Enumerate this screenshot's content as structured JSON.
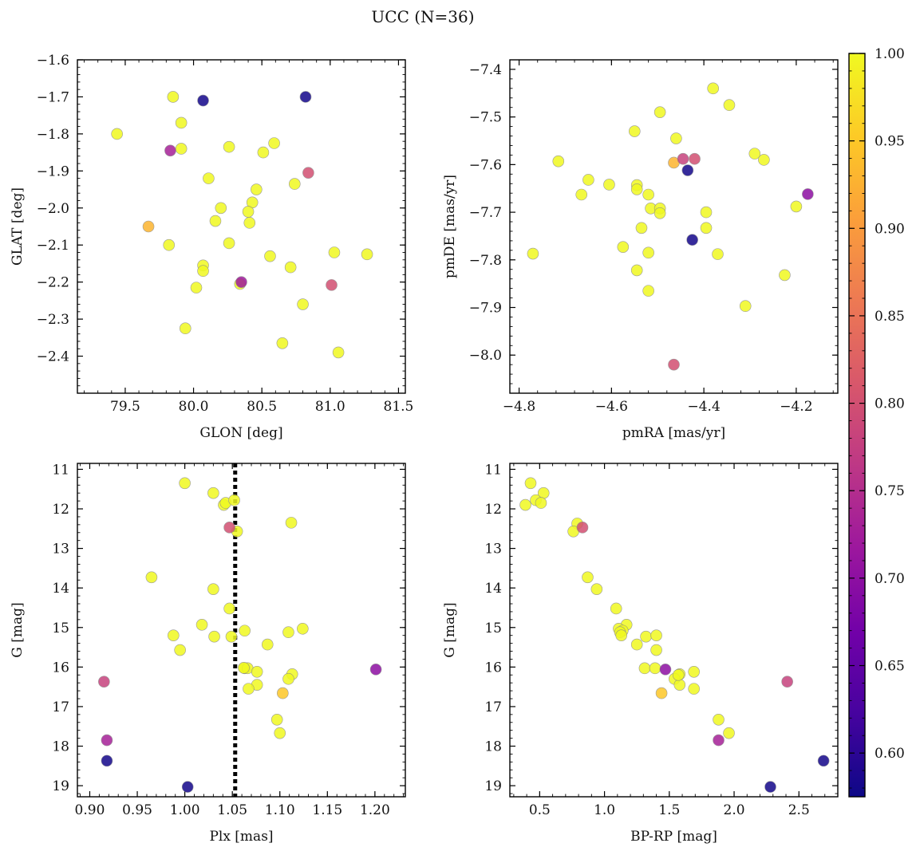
{
  "figure_title": "UCC (N=36)",
  "colorbar": {
    "min": 0.575,
    "max": 1.0,
    "ticks": [
      "0.60",
      "0.65",
      "0.70",
      "0.75",
      "0.80",
      "0.85",
      "0.90",
      "0.95",
      "1.00"
    ],
    "colormap": "plasma",
    "stops": [
      "#0d0887",
      "#46039f",
      "#7201a8",
      "#9c179e",
      "#bd3786",
      "#d8576b",
      "#ed7953",
      "#fb9f3a",
      "#fdca26",
      "#f0f921"
    ]
  },
  "chart_data": [
    {
      "type": "scatter",
      "title": "",
      "xlabel": "GLON [deg]",
      "ylabel": "GLAT [deg]",
      "xlim": [
        79.15,
        81.55
      ],
      "ylim": [
        -2.5,
        -1.6
      ],
      "y_inverted": false,
      "xticks": [
        79.5,
        80.0,
        80.5,
        81.0,
        81.5
      ],
      "yticks": [
        -2.4,
        -2.3,
        -2.2,
        -2.1,
        -2.0,
        -1.9,
        -1.8,
        -1.7,
        -1.6
      ],
      "x_decimals": 1,
      "y_decimals": 1,
      "points": [
        [
          79.44,
          -1.8,
          1.0
        ],
        [
          79.85,
          -1.7,
          1.0
        ],
        [
          80.07,
          -1.71,
          0.58
        ],
        [
          80.82,
          -1.7,
          0.58
        ],
        [
          79.91,
          -1.77,
          1.0
        ],
        [
          79.91,
          -1.84,
          1.0
        ],
        [
          79.83,
          -1.845,
          0.73
        ],
        [
          80.26,
          -1.835,
          1.0
        ],
        [
          80.51,
          -1.85,
          1.0
        ],
        [
          80.59,
          -1.825,
          1.0
        ],
        [
          80.84,
          -1.905,
          0.8
        ],
        [
          80.11,
          -1.92,
          1.0
        ],
        [
          80.74,
          -1.935,
          1.0
        ],
        [
          80.46,
          -1.95,
          1.0
        ],
        [
          80.43,
          -1.985,
          1.0
        ],
        [
          80.2,
          -2.0,
          1.0
        ],
        [
          80.4,
          -2.01,
          1.0
        ],
        [
          80.16,
          -2.035,
          1.0
        ],
        [
          80.41,
          -2.04,
          1.0
        ],
        [
          79.67,
          -2.05,
          0.93
        ],
        [
          80.26,
          -2.095,
          1.0
        ],
        [
          79.82,
          -2.1,
          1.0
        ],
        [
          81.03,
          -2.12,
          1.0
        ],
        [
          81.27,
          -2.125,
          1.0
        ],
        [
          80.56,
          -2.13,
          1.0
        ],
        [
          80.07,
          -2.155,
          1.0
        ],
        [
          80.07,
          -2.17,
          1.0
        ],
        [
          80.71,
          -2.16,
          1.0
        ],
        [
          80.35,
          -2.2,
          0.72
        ],
        [
          80.34,
          -2.205,
          1.0
        ],
        [
          81.01,
          -2.208,
          0.8
        ],
        [
          80.02,
          -2.215,
          1.0
        ],
        [
          80.8,
          -2.26,
          1.0
        ],
        [
          79.94,
          -2.325,
          1.0
        ],
        [
          80.65,
          -2.365,
          1.0
        ],
        [
          81.06,
          -2.39,
          1.0
        ]
      ]
    },
    {
      "type": "scatter",
      "title": "",
      "xlabel": "pmRA [mas/yr]",
      "ylabel": "pmDE [mas/yr]",
      "xlim": [
        -4.82,
        -4.11
      ],
      "ylim": [
        -8.08,
        -7.38
      ],
      "y_inverted": false,
      "xticks": [
        -4.8,
        -4.6,
        -4.4,
        -4.2
      ],
      "yticks": [
        -8.0,
        -7.9,
        -7.8,
        -7.7,
        -7.6,
        -7.5,
        -7.4
      ],
      "x_decimals": 1,
      "y_decimals": 1,
      "points": [
        [
          -4.38,
          -7.44,
          1.0
        ],
        [
          -4.345,
          -7.475,
          1.0
        ],
        [
          -4.495,
          -7.49,
          1.0
        ],
        [
          -4.55,
          -7.53,
          1.0
        ],
        [
          -4.46,
          -7.545,
          1.0
        ],
        [
          -4.29,
          -7.577,
          1.0
        ],
        [
          -4.27,
          -7.59,
          1.0
        ],
        [
          -4.445,
          -7.588,
          0.78
        ],
        [
          -4.42,
          -7.588,
          0.8
        ],
        [
          -4.465,
          -7.596,
          0.93
        ],
        [
          -4.715,
          -7.593,
          1.0
        ],
        [
          -4.435,
          -7.612,
          0.58
        ],
        [
          -4.65,
          -7.632,
          1.0
        ],
        [
          -4.605,
          -7.642,
          1.0
        ],
        [
          -4.545,
          -7.643,
          1.0
        ],
        [
          -4.545,
          -7.652,
          1.0
        ],
        [
          -4.665,
          -7.663,
          1.0
        ],
        [
          -4.52,
          -7.663,
          1.0
        ],
        [
          -4.175,
          -7.662,
          0.7
        ],
        [
          -4.515,
          -7.692,
          1.0
        ],
        [
          -4.495,
          -7.692,
          1.0
        ],
        [
          -4.2,
          -7.688,
          1.0
        ],
        [
          -4.495,
          -7.702,
          1.0
        ],
        [
          -4.395,
          -7.7,
          1.0
        ],
        [
          -4.535,
          -7.733,
          1.0
        ],
        [
          -4.395,
          -7.733,
          1.0
        ],
        [
          -4.425,
          -7.758,
          0.58
        ],
        [
          -4.575,
          -7.773,
          1.0
        ],
        [
          -4.77,
          -7.787,
          1.0
        ],
        [
          -4.52,
          -7.785,
          1.0
        ],
        [
          -4.37,
          -7.788,
          1.0
        ],
        [
          -4.545,
          -7.822,
          1.0
        ],
        [
          -4.225,
          -7.832,
          1.0
        ],
        [
          -4.52,
          -7.865,
          1.0
        ],
        [
          -4.31,
          -7.897,
          1.0
        ],
        [
          -4.465,
          -8.02,
          0.8
        ]
      ]
    },
    {
      "type": "scatter",
      "title": "",
      "xlabel": "Plx [mas]",
      "ylabel": "G [mag]",
      "xlim": [
        0.887,
        1.232
      ],
      "ylim": [
        10.85,
        19.28
      ],
      "y_inverted": true,
      "xticks": [
        0.9,
        0.95,
        1.0,
        1.05,
        1.1,
        1.15,
        1.2
      ],
      "yticks": [
        11,
        12,
        13,
        14,
        15,
        16,
        17,
        18,
        19
      ],
      "x_decimals": 2,
      "y_decimals": 0,
      "vline": 1.053,
      "points": [
        [
          1.0,
          11.35,
          1.0
        ],
        [
          1.03,
          11.6,
          1.0
        ],
        [
          1.041,
          11.9,
          1.0
        ],
        [
          1.043,
          11.85,
          1.0
        ],
        [
          1.052,
          11.78,
          1.0
        ],
        [
          1.055,
          12.57,
          1.0
        ],
        [
          1.112,
          12.35,
          1.0
        ],
        [
          1.047,
          12.47,
          0.8
        ],
        [
          0.965,
          13.73,
          1.0
        ],
        [
          1.03,
          14.03,
          1.0
        ],
        [
          1.047,
          14.52,
          1.0
        ],
        [
          1.018,
          14.93,
          1.0
        ],
        [
          1.124,
          15.03,
          1.0
        ],
        [
          1.063,
          15.08,
          1.0
        ],
        [
          1.109,
          15.12,
          1.0
        ],
        [
          0.988,
          15.2,
          1.0
        ],
        [
          1.031,
          15.23,
          1.0
        ],
        [
          1.049,
          15.23,
          1.0
        ],
        [
          1.087,
          15.43,
          1.0
        ],
        [
          0.995,
          15.57,
          1.0
        ],
        [
          1.063,
          16.03,
          1.0
        ],
        [
          1.066,
          16.03,
          1.0
        ],
        [
          1.201,
          16.06,
          0.7
        ],
        [
          1.076,
          16.12,
          1.0
        ],
        [
          1.113,
          16.18,
          1.0
        ],
        [
          1.109,
          16.3,
          1.0
        ],
        [
          0.915,
          16.37,
          0.78
        ],
        [
          1.076,
          16.45,
          1.0
        ],
        [
          1.067,
          16.55,
          1.0
        ],
        [
          1.103,
          16.66,
          0.95
        ],
        [
          1.097,
          17.33,
          1.0
        ],
        [
          1.1,
          17.67,
          1.0
        ],
        [
          0.918,
          17.85,
          0.73
        ],
        [
          0.918,
          18.37,
          0.58
        ],
        [
          1.003,
          19.03,
          0.58
        ],
        [
          1.062,
          16.02,
          1.0
        ]
      ]
    },
    {
      "type": "scatter",
      "title": "",
      "xlabel": "BP-RP [mag]",
      "ylabel": "G [mag]",
      "xlim": [
        0.27,
        2.8
      ],
      "ylim": [
        10.85,
        19.28
      ],
      "y_inverted": true,
      "xticks": [
        0.5,
        1.0,
        1.5,
        2.0,
        2.5
      ],
      "yticks": [
        11,
        12,
        13,
        14,
        15,
        16,
        17,
        18,
        19
      ],
      "x_decimals": 1,
      "y_decimals": 0,
      "points": [
        [
          0.43,
          11.35,
          1.0
        ],
        [
          0.53,
          11.6,
          1.0
        ],
        [
          0.47,
          11.78,
          1.0
        ],
        [
          0.51,
          11.85,
          1.0
        ],
        [
          0.39,
          11.9,
          1.0
        ],
        [
          0.79,
          12.37,
          1.0
        ],
        [
          0.83,
          12.47,
          0.8
        ],
        [
          0.76,
          12.57,
          1.0
        ],
        [
          0.87,
          13.73,
          1.0
        ],
        [
          0.94,
          14.03,
          1.0
        ],
        [
          1.09,
          14.52,
          1.0
        ],
        [
          1.17,
          14.93,
          1.0
        ],
        [
          1.11,
          15.03,
          1.0
        ],
        [
          1.14,
          15.08,
          1.0
        ],
        [
          1.12,
          15.12,
          1.0
        ],
        [
          1.13,
          15.2,
          1.0
        ],
        [
          1.32,
          15.23,
          1.0
        ],
        [
          1.4,
          15.2,
          1.0
        ],
        [
          1.25,
          15.43,
          1.0
        ],
        [
          1.4,
          15.57,
          1.0
        ],
        [
          1.31,
          16.03,
          1.0
        ],
        [
          1.39,
          16.03,
          1.0
        ],
        [
          1.47,
          16.06,
          0.7
        ],
        [
          1.69,
          16.12,
          1.0
        ],
        [
          1.58,
          16.18,
          1.0
        ],
        [
          1.54,
          16.3,
          1.0
        ],
        [
          2.41,
          16.37,
          0.78
        ],
        [
          1.58,
          16.45,
          1.0
        ],
        [
          1.69,
          16.55,
          1.0
        ],
        [
          1.44,
          16.66,
          0.95
        ],
        [
          1.88,
          17.33,
          1.0
        ],
        [
          1.96,
          17.67,
          1.0
        ],
        [
          1.88,
          17.85,
          0.73
        ],
        [
          2.69,
          18.37,
          0.58
        ],
        [
          2.28,
          19.03,
          0.58
        ],
        [
          1.57,
          16.2,
          1.0
        ]
      ]
    }
  ]
}
